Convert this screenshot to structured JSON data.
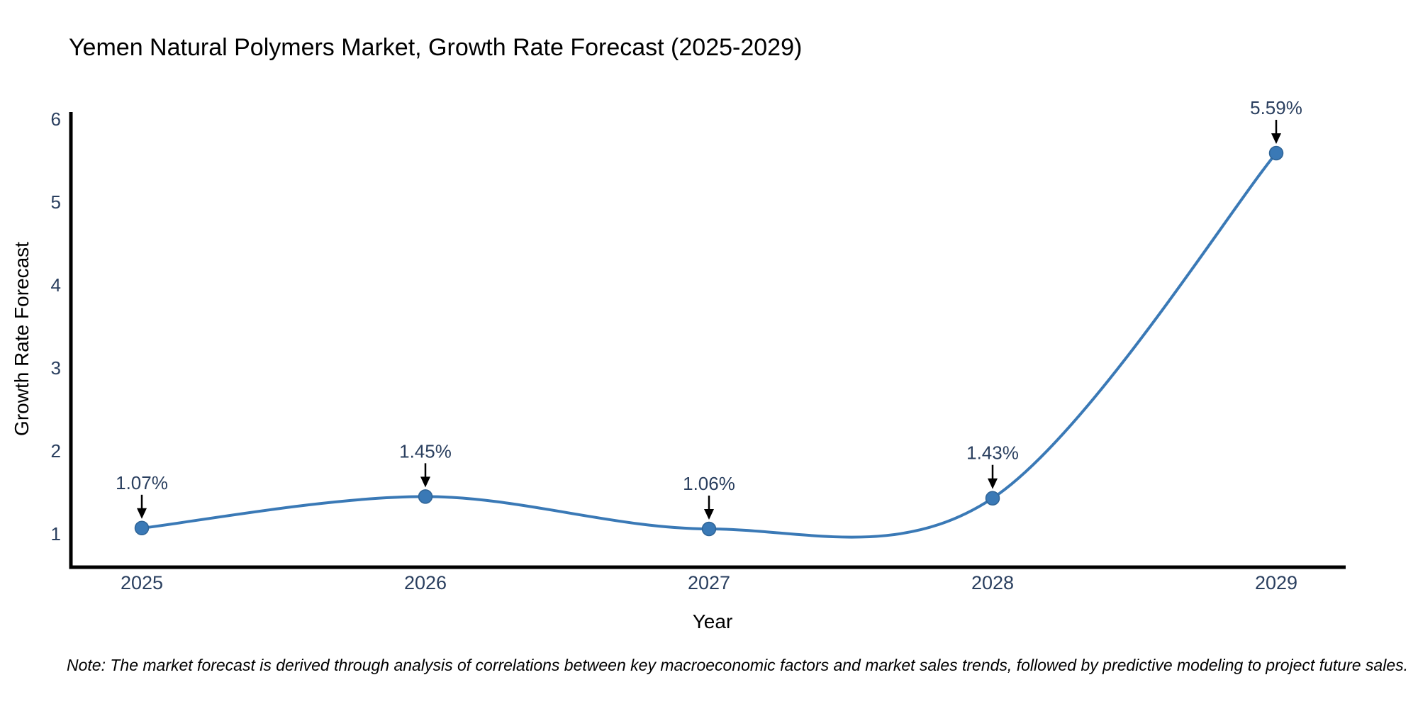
{
  "title": "Yemen Natural Polymers Market, Growth Rate Forecast (2025-2029)",
  "note": "Note: The market forecast is derived through analysis of correlations between key macroeconomic factors and market sales trends, followed by predictive modeling to project future sales.",
  "chart_data": {
    "type": "line",
    "title": "Yemen Natural Polymers Market, Growth Rate Forecast (2025-2029)",
    "xlabel": "Year",
    "ylabel": "Growth Rate Forecast",
    "categories": [
      "2025",
      "2026",
      "2027",
      "2028",
      "2029"
    ],
    "values": [
      1.07,
      1.45,
      1.06,
      1.43,
      5.59
    ],
    "point_labels": [
      "1.07%",
      "1.45%",
      "1.06%",
      "1.43%",
      "5.59%"
    ],
    "yticks": [
      1,
      2,
      3,
      4,
      5,
      6
    ],
    "ylim": [
      0.6,
      6.1
    ],
    "grid": false,
    "legend_position": "none",
    "smooth_spline": true,
    "annotation_arrows": true,
    "colors": {
      "line": "#3a79b6",
      "marker": "#3a79b6",
      "marker_edge": "#2f6496",
      "axis": "#000000",
      "text": "#2a3f5f",
      "annotation_text": "#2a3f5f",
      "arrow": "#000000",
      "note_text": "#1a1a1a",
      "background": "#ffffff"
    }
  }
}
